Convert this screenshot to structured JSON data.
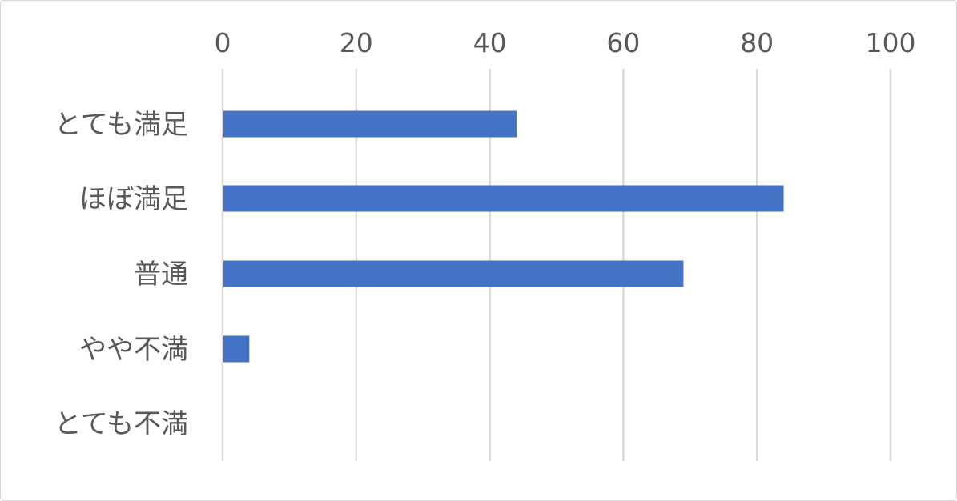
{
  "chart_data": {
    "type": "bar",
    "orientation": "horizontal",
    "categories": [
      "とても満足",
      "ほぼ満足",
      "普通",
      "やや不満",
      "とても不満"
    ],
    "values": [
      44,
      84,
      69,
      4,
      0
    ],
    "title": "",
    "xlabel": "",
    "ylabel": "",
    "xlim": [
      0,
      100
    ],
    "xticks": [
      "0",
      "20",
      "40",
      "60",
      "80",
      "100"
    ],
    "x_axis_position": "top",
    "grid": true,
    "legend": "none",
    "bar_color": "#4472c4",
    "grid_color": "#d9d9d9"
  }
}
